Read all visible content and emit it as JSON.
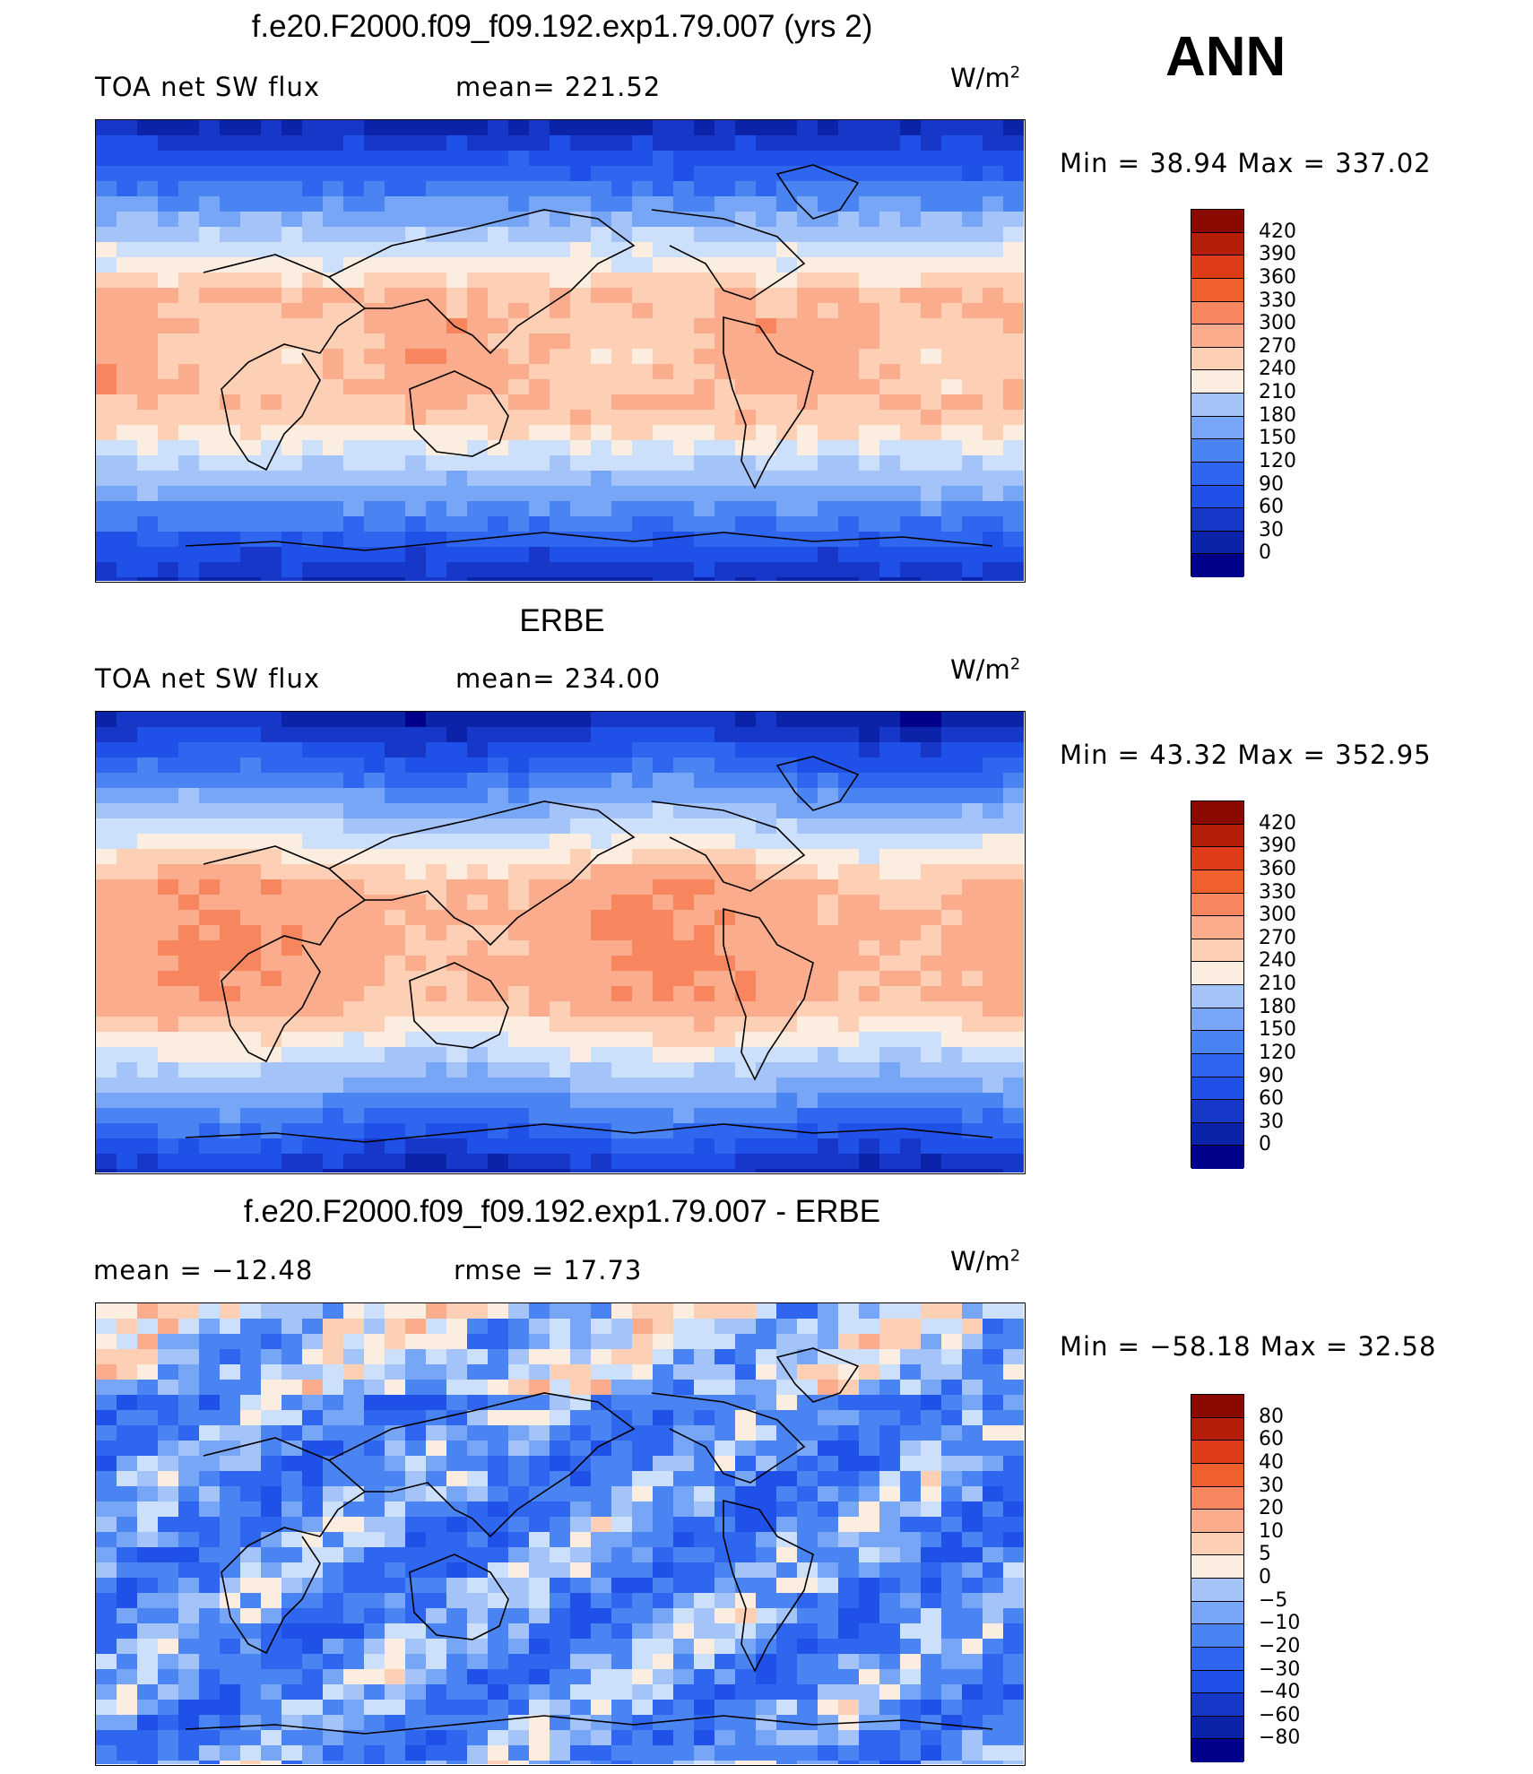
{
  "corner_label": "ANN",
  "units_base": "W/m",
  "units_exp": "2",
  "panels": [
    {
      "title": "f.e20.F2000.f09_f09.192.exp1.79.007 (yrs 2)",
      "left_label": "TOA net SW flux",
      "mid_label": "mean=  221.52",
      "minmax": "Min  =    38.94  Max  =  337.02",
      "colorbar": [
        "420",
        "390",
        "360",
        "330",
        "300",
        "270",
        "240",
        "210",
        "180",
        "150",
        "120",
        "90",
        "60",
        "30",
        "0"
      ],
      "field": "model"
    },
    {
      "title": "ERBE",
      "left_label": "TOA net SW flux",
      "mid_label": "mean=  234.00",
      "minmax": "Min  =    43.32  Max  =  352.95",
      "colorbar": [
        "420",
        "390",
        "360",
        "330",
        "300",
        "270",
        "240",
        "210",
        "180",
        "150",
        "120",
        "90",
        "60",
        "30",
        "0"
      ],
      "field": "obs"
    },
    {
      "title": "f.e20.F2000.f09_f09.192.exp1.79.007 - ERBE",
      "left_label": "mean  =  −12.48",
      "mid_label": "rmse  =    17.73",
      "minmax": "Min  =  −58.18  Max  =    32.58",
      "colorbar": [
        "80",
        "60",
        "40",
        "30",
        "20",
        "10",
        "5",
        "0",
        "−5",
        "−10",
        "−20",
        "−30",
        "−40",
        "−60",
        "−80"
      ],
      "field": "diff"
    }
  ],
  "colors": {
    "palette": [
      "#00008b",
      "#0a23a8",
      "#1637c8",
      "#1f50e8",
      "#2e66f0",
      "#4a84f2",
      "#77a6f6",
      "#a4c4f9",
      "#cde0fb",
      "#fbeee0",
      "#fdd0b5",
      "#fbac8c",
      "#f7855e",
      "#f0602f",
      "#de3c18",
      "#b51f0a",
      "#8a0a00"
    ],
    "coast": "#000000"
  }
}
